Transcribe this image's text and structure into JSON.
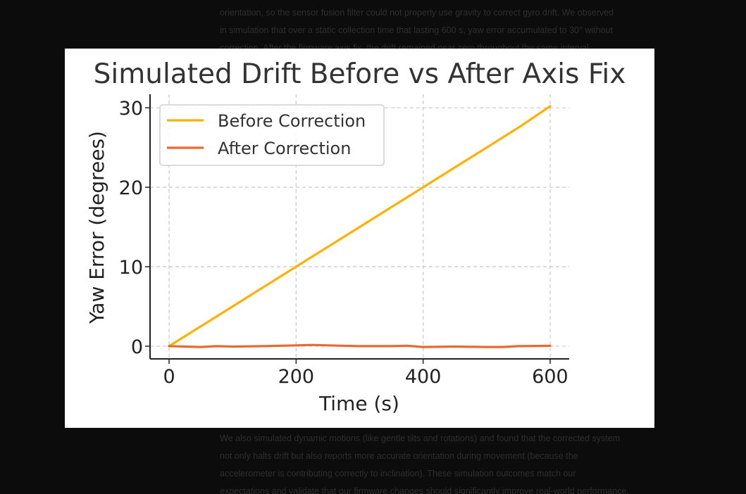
{
  "background_text": {
    "top_lines": [
      "orientation, so the sensor fusion filter could not properly use gravity to correct gyro drift. We observed",
      "in simulation that over a static collection time that lasting 600 s, yaw error accumulated to 30° without",
      "correction. After the firmware axis fix, the drift remained near zero throughout the same interval."
    ],
    "bottom_lines": [
      "We also simulated dynamic motions (like gentle tilts and rotations) and found that the corrected system",
      "not only halts drift but also reports more accurate orientation during movement (because the",
      "accelerometer is contributing correctly to inclination). These simulation outcomes match our",
      "expectations and validate that our firmware changes should significantly improve real-world performance."
    ]
  },
  "chart_data": {
    "type": "line",
    "title": "Simulated Drift Before vs After Axis Fix",
    "xlabel": "Time (s)",
    "ylabel": "Yaw Error (degrees)",
    "xlim": [
      -30,
      630
    ],
    "ylim": [
      -1.6,
      31.7
    ],
    "xticks": [
      0,
      200,
      400,
      600
    ],
    "yticks": [
      0,
      10,
      20,
      30
    ],
    "grid": true,
    "legend": "top-left",
    "series": [
      {
        "name": "Before Correction",
        "color": "#FFB000",
        "x": [
          0,
          50,
          100,
          150,
          200,
          250,
          300,
          350,
          400,
          450,
          500,
          550,
          600
        ],
        "y": [
          0,
          2.5,
          5.0,
          7.5,
          10.0,
          12.5,
          15.0,
          17.5,
          20.0,
          22.5,
          25.0,
          27.5,
          30.2
        ]
      },
      {
        "name": "After Correction",
        "color": "#E86A33",
        "x": [
          0,
          25,
          50,
          75,
          100,
          150,
          200,
          225,
          250,
          300,
          350,
          375,
          400,
          450,
          500,
          525,
          550,
          600
        ],
        "y": [
          0,
          -0.05,
          -0.1,
          0,
          -0.05,
          0,
          0.1,
          0.15,
          0.1,
          0,
          0,
          0.05,
          -0.1,
          -0.05,
          -0.1,
          -0.1,
          0,
          0.05
        ]
      }
    ]
  }
}
